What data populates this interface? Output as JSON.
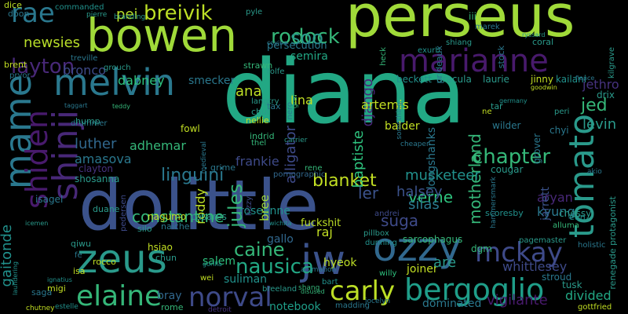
{
  "word_cloud": {
    "words": [
      {
        "text": "diana",
        "color": "#22a884"
      },
      {
        "text": "dolittle",
        "color": "#3b528b"
      },
      {
        "text": "perseus",
        "color": "#a0da39"
      },
      {
        "text": "bowen",
        "color": "#a0da39"
      },
      {
        "text": "marianne",
        "color": "#481a6c"
      },
      {
        "text": "zeus",
        "color": "#2a9a8b"
      },
      {
        "text": "ozzy",
        "color": "#31688e"
      },
      {
        "text": "jw",
        "color": "#3b528b"
      },
      {
        "text": "melvin",
        "color": "#2a788e"
      },
      {
        "text": "shinji",
        "color": "#482878"
      },
      {
        "text": "mame",
        "color": "#2a788e"
      },
      {
        "text": "tomato",
        "color": "#2a9a8b"
      },
      {
        "text": "shiden",
        "color": "#481a6c"
      },
      {
        "text": "bergoglio",
        "color": "#1f9e89"
      },
      {
        "text": "mckay",
        "color": "#3e4a89"
      },
      {
        "text": "rae",
        "color": "#2a788e"
      },
      {
        "text": "breivik",
        "color": "#bddf26"
      },
      {
        "text": "rodock",
        "color": "#35b779"
      },
      {
        "text": "layton",
        "color": "#482878"
      },
      {
        "text": "newsies",
        "color": "#b8de29"
      },
      {
        "text": "soo",
        "color": "#2a9a8b"
      },
      {
        "text": "pei",
        "color": "#b8de29"
      },
      {
        "text": "elaine",
        "color": "#35b779"
      },
      {
        "text": "norval",
        "color": "#3e4a89"
      },
      {
        "text": "carly",
        "color": "#bddf26"
      },
      {
        "text": "nausica",
        "color": "#22a884"
      },
      {
        "text": "caine",
        "color": "#35b779"
      },
      {
        "text": "chapter",
        "color": "#35b779"
      },
      {
        "text": "linguini",
        "color": "#2a788e"
      },
      {
        "text": "constantine",
        "color": "#35b779"
      },
      {
        "text": "gaitonde",
        "color": "#21918c"
      },
      {
        "text": "motherland",
        "color": "#35b779"
      },
      {
        "text": "blanket",
        "color": "#c2df23"
      },
      {
        "text": "jules",
        "color": "#35b779"
      },
      {
        "text": "verne",
        "color": "#2ec27e"
      },
      {
        "text": "suga",
        "color": "#3e4a89"
      },
      {
        "text": "baptiste",
        "color": "#2ec27e"
      },
      {
        "text": "alligator",
        "color": "#3e4a89"
      },
      {
        "text": "django",
        "color": "#482878"
      },
      {
        "text": "ana",
        "color": "#bddf26"
      },
      {
        "text": "jed",
        "color": "#35b779"
      },
      {
        "text": "levin",
        "color": "#2a9a8b"
      },
      {
        "text": "jethro",
        "color": "#46327e"
      },
      {
        "text": "divided",
        "color": "#22a884"
      },
      {
        "text": "whittlesey",
        "color": "#3e4a89"
      },
      {
        "text": "aryan",
        "color": "#482878"
      },
      {
        "text": "kyung",
        "color": "#2a788e"
      },
      {
        "text": "jarrett",
        "color": "#3b528b"
      },
      {
        "text": "luther",
        "color": "#31688e"
      },
      {
        "text": "amasova",
        "color": "#2a788e"
      },
      {
        "text": "adhemar",
        "color": "#35b779"
      },
      {
        "text": "bronco",
        "color": "#3e4a89"
      },
      {
        "text": "dabney",
        "color": "#2ec27e"
      },
      {
        "text": "smecker",
        "color": "#2a788e"
      },
      {
        "text": "semira",
        "color": "#22a884"
      },
      {
        "text": "persecution",
        "color": "#2a788e"
      },
      {
        "text": "lina",
        "color": "#c2df23"
      },
      {
        "text": "roddy",
        "color": "#bddf26"
      },
      {
        "text": "ler",
        "color": "#3b528b"
      },
      {
        "text": "halsey",
        "color": "#3b528b"
      },
      {
        "text": "musketeer",
        "color": "#21918c"
      },
      {
        "text": "frankie",
        "color": "#3e4a89"
      },
      {
        "text": "roseanne",
        "color": "#21918c"
      },
      {
        "text": "silas",
        "color": "#2a788e"
      },
      {
        "text": "raj",
        "color": "#c2df23"
      },
      {
        "text": "gallo",
        "color": "#31688e"
      },
      {
        "text": "bree",
        "color": "#a0da39"
      },
      {
        "text": "hyeok",
        "color": "#bddf26"
      },
      {
        "text": "salem",
        "color": "#2ec27e"
      },
      {
        "text": "bray",
        "color": "#31688e"
      },
      {
        "text": "suliman",
        "color": "#21918c"
      },
      {
        "text": "joiner",
        "color": "#c2df23"
      },
      {
        "text": "notebook",
        "color": "#1f9e89"
      },
      {
        "text": "are",
        "color": "#2a9a8b"
      },
      {
        "text": "dominated",
        "color": "#2a788e"
      },
      {
        "text": "vigilante",
        "color": "#481a6c"
      },
      {
        "text": "balder",
        "color": "#c2df23"
      },
      {
        "text": "artemis",
        "color": "#c2df23"
      },
      {
        "text": "longshanks",
        "color": "#2a788e"
      },
      {
        "text": "beckett",
        "color": "#21918c"
      },
      {
        "text": "dracula",
        "color": "#2a9a8b"
      },
      {
        "text": "laurie",
        "color": "#2a9a8b"
      },
      {
        "text": "jinny",
        "color": "#c2df23"
      },
      {
        "text": "kailani",
        "color": "#21918c"
      },
      {
        "text": "drix",
        "color": "#2a9a8b"
      },
      {
        "text": "wilder",
        "color": "#2a788e"
      },
      {
        "text": "tar",
        "color": "#2a9a8b"
      },
      {
        "text": "chyi",
        "color": "#2a788e"
      },
      {
        "text": "grover",
        "color": "#2a788e"
      },
      {
        "text": "cougar",
        "color": "#2a9a8b"
      },
      {
        "text": "dgm",
        "color": "#35b779"
      },
      {
        "text": "stroud",
        "color": "#2a788e"
      },
      {
        "text": "tusk",
        "color": "#2a9a8b"
      },
      {
        "text": "gottfried",
        "color": "#c2df23"
      },
      {
        "text": "renegade protagonist",
        "color": "#2a9a8b"
      },
      {
        "text": "chessy",
        "color": "#2a9a8b"
      },
      {
        "text": "pagemaster",
        "color": "#2a9a8b"
      },
      {
        "text": "holistic",
        "color": "#2a788e"
      },
      {
        "text": "eun",
        "color": "#21918c"
      },
      {
        "text": "alluma",
        "color": "#35b779"
      },
      {
        "text": "scoresby",
        "color": "#21918c"
      },
      {
        "text": "sarcophagus",
        "color": "#35b779"
      },
      {
        "text": "dunning",
        "color": "#21918c"
      },
      {
        "text": "willy",
        "color": "#2ec27e"
      },
      {
        "text": "pillbox",
        "color": "#2a9a8b"
      },
      {
        "text": "andrei",
        "color": "#3e4a89"
      },
      {
        "text": "fuckshit",
        "color": "#bddf26"
      },
      {
        "text": "kizzy",
        "color": "#3e4a89"
      },
      {
        "text": "rene",
        "color": "#35b779"
      },
      {
        "text": "pornographic",
        "color": "#31688e"
      },
      {
        "text": "indrid",
        "color": "#35b779"
      },
      {
        "text": "nellie",
        "color": "#c2df23"
      },
      {
        "text": "thel",
        "color": "#35b779"
      },
      {
        "text": "chul",
        "color": "#2a9a8b"
      },
      {
        "text": "tax",
        "color": "#2a788e"
      },
      {
        "text": "langtry",
        "color": "#2a9a8b"
      },
      {
        "text": "strawn",
        "color": "#35b779"
      },
      {
        "text": "rolfe",
        "color": "#2a9a8b"
      },
      {
        "text": "fowl",
        "color": "#c2df23"
      },
      {
        "text": "grime",
        "color": "#2a788e"
      },
      {
        "text": "medieval",
        "color": "#2a788e"
      },
      {
        "text": "nagumo",
        "color": "#c2df23"
      },
      {
        "text": "casares",
        "color": "#2a9a8b"
      },
      {
        "text": "naiche",
        "color": "#2a788e"
      },
      {
        "text": "silo",
        "color": "#2a9a8b"
      },
      {
        "text": "hsiao",
        "color": "#c2df23"
      },
      {
        "text": "chun",
        "color": "#2a9a8b"
      },
      {
        "text": "clayton",
        "color": "#46327e"
      },
      {
        "text": "shosanna",
        "color": "#2a9a8b"
      },
      {
        "text": "isagel",
        "color": "#2a788e"
      },
      {
        "text": "duane",
        "color": "#2a9a8b"
      },
      {
        "text": "pedersen",
        "color": "#3e4a89"
      },
      {
        "text": "rocco",
        "color": "#c2df23"
      },
      {
        "text": "isa",
        "color": "#c2df23"
      },
      {
        "text": "qiwu",
        "color": "#2a9a8b"
      },
      {
        "text": "migi",
        "color": "#c2df23"
      },
      {
        "text": "saga",
        "color": "#2a788e"
      },
      {
        "text": "chutney",
        "color": "#c2df23"
      },
      {
        "text": "estelle",
        "color": "#21918c"
      },
      {
        "text": "rome",
        "color": "#35b779"
      },
      {
        "text": "detroit",
        "color": "#46327e"
      },
      {
        "text": "wei",
        "color": "#c2df23"
      },
      {
        "text": "bart",
        "color": "#21918c"
      },
      {
        "text": "breeland",
        "color": "#2a9a8b"
      },
      {
        "text": "madding",
        "color": "#2a788e"
      },
      {
        "text": "jocelyn",
        "color": "#2a788e"
      },
      {
        "text": "shang",
        "color": "#35b779"
      },
      {
        "text": "animation",
        "color": "#2a788e"
      },
      {
        "text": "dice",
        "color": "#bddf26"
      },
      {
        "text": "doon",
        "color": "#2a788e"
      },
      {
        "text": "commanded",
        "color": "#21918c"
      },
      {
        "text": "pierre",
        "color": "#2a9a8b"
      },
      {
        "text": "branding",
        "color": "#2a9a8b"
      },
      {
        "text": "pyle",
        "color": "#2a9a8b"
      },
      {
        "text": "prideaux",
        "color": "#2a788e"
      },
      {
        "text": "shiang",
        "color": "#2a9a8b"
      },
      {
        "text": "marek",
        "color": "#2a788e"
      },
      {
        "text": "exurb",
        "color": "#21918c"
      },
      {
        "text": "iii",
        "color": "#35b779"
      },
      {
        "text": "stock",
        "color": "#2a788e"
      },
      {
        "text": "coral",
        "color": "#2a9a8b"
      },
      {
        "text": "ryssard",
        "color": "#2a9a8b"
      },
      {
        "text": "kilgrave",
        "color": "#2a9a8b"
      },
      {
        "text": "brent",
        "color": "#c2df23"
      },
      {
        "text": "treville",
        "color": "#2a788e"
      },
      {
        "text": "grouch",
        "color": "#2a9a8b"
      },
      {
        "text": "teddy",
        "color": "#35b779"
      },
      {
        "text": "taggart",
        "color": "#2a788e"
      },
      {
        "text": "drummer",
        "color": "#2a788e"
      },
      {
        "text": "hump",
        "color": "#2a9a8b"
      },
      {
        "text": "covina",
        "color": "#2a788e"
      },
      {
        "text": "cheaper",
        "color": "#2a788e"
      },
      {
        "text": "carrier",
        "color": "#2a9a8b"
      },
      {
        "text": "heck",
        "color": "#35b779"
      },
      {
        "text": "nero",
        "color": "#2a788e"
      },
      {
        "text": "graf",
        "color": "#35b779"
      },
      {
        "text": "something",
        "color": "#2a788e"
      },
      {
        "text": "ne",
        "color": "#c2df23"
      },
      {
        "text": "peri",
        "color": "#2a9a8b"
      },
      {
        "text": "germany",
        "color": "#21918c"
      },
      {
        "text": "goodwin",
        "color": "#c2df23"
      },
      {
        "text": "fiance",
        "color": "#2a788e"
      },
      {
        "text": "hammersmark",
        "color": "#2a788e"
      },
      {
        "text": "akio",
        "color": "#2a788e"
      },
      {
        "text": "icemen",
        "color": "#2a9a8b"
      },
      {
        "text": "laundering",
        "color": "#21918c"
      },
      {
        "text": "fe",
        "color": "#2a788e"
      },
      {
        "text": "ignatius",
        "color": "#21918c"
      },
      {
        "text": "disused",
        "color": "#35b779"
      },
      {
        "text": "wichita",
        "color": "#21918c"
      },
      {
        "text": "gorilla",
        "color": "#21918c"
      },
      {
        "text": "pryor",
        "color": "#2a788e"
      }
    ]
  }
}
